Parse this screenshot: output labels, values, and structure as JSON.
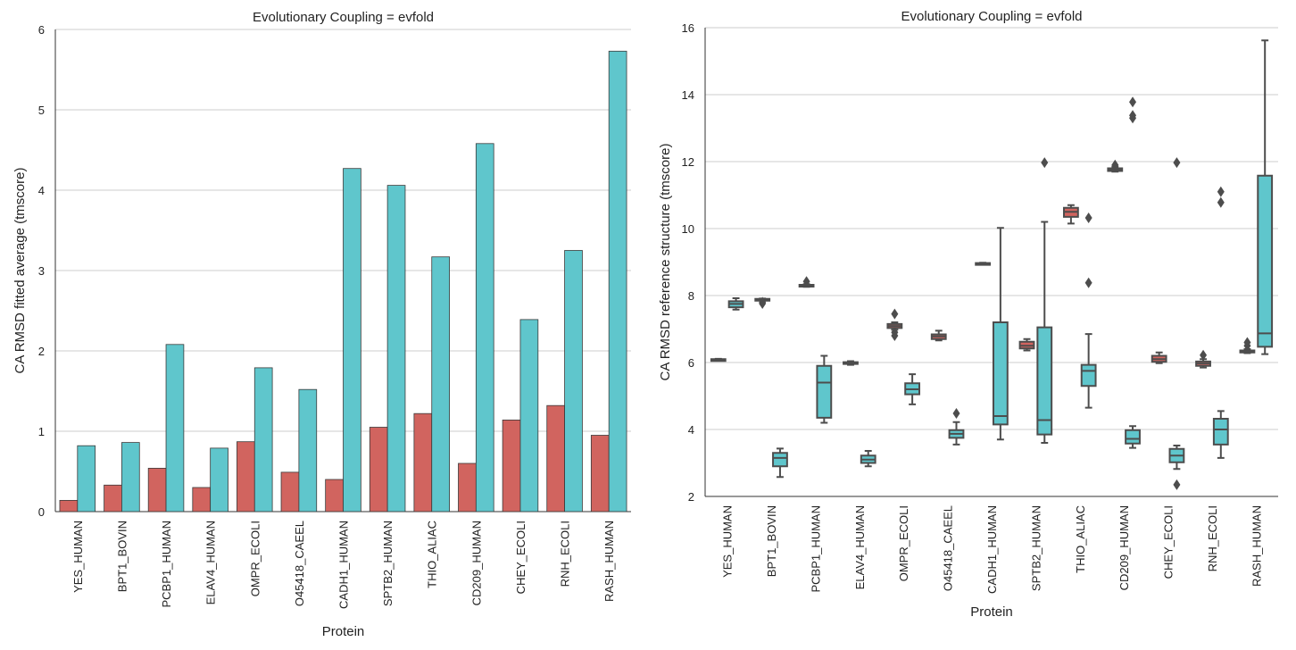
{
  "chart_data": [
    {
      "type": "bar",
      "title": "Evolutionary Coupling = evfold",
      "xlabel": "Protein",
      "ylabel": "CA RMSD fitted average (tmscore)",
      "ylim": [
        0,
        6
      ],
      "yticks": [
        "0",
        "1",
        "2",
        "3",
        "4",
        "5",
        "6"
      ],
      "grid": true,
      "categories": [
        "YES_HUMAN",
        "BPT1_BOVIN",
        "PCBP1_HUMAN",
        "ELAV4_HUMAN",
        "OMPR_ECOLI",
        "O45418_CAEEL",
        "CADH1_HUMAN",
        "SPTB2_HUMAN",
        "THIO_ALIAC",
        "CD209_HUMAN",
        "CHEY_ECOLI",
        "RNH_ECOLI",
        "RASH_HUMAN"
      ],
      "series": [
        {
          "color": "#d1645f",
          "values": [
            0.14,
            0.33,
            0.54,
            0.3,
            0.87,
            0.49,
            0.4,
            1.05,
            1.22,
            0.6,
            1.14,
            1.32,
            0.95
          ]
        },
        {
          "color": "#5fc6cc",
          "values": [
            0.82,
            0.86,
            2.08,
            0.79,
            1.79,
            1.52,
            4.27,
            4.06,
            3.17,
            4.58,
            2.39,
            3.25,
            5.73
          ]
        }
      ]
    },
    {
      "type": "box",
      "title": "Evolutionary Coupling = evfold",
      "xlabel": "Protein",
      "ylabel": "CA RMSD reference structure (tmscore)",
      "ylim": [
        2,
        16
      ],
      "yticks": [
        "2",
        "4",
        "6",
        "8",
        "10",
        "12",
        "14",
        "16"
      ],
      "grid": true,
      "categories": [
        "YES_HUMAN",
        "BPT1_BOVIN",
        "PCBP1_HUMAN",
        "ELAV4_HUMAN",
        "OMPR_ECOLI",
        "O45418_CAEEL",
        "CADH1_HUMAN",
        "SPTB2_HUMAN",
        "THIO_ALIAC",
        "CD209_HUMAN",
        "CHEY_ECOLI",
        "RNH_ECOLI",
        "RASH_HUMAN"
      ],
      "series": [
        {
          "color": "#d1645f",
          "boxes": [
            {
              "whislo": 6.07,
              "q1": 6.08,
              "med": 6.09,
              "q3": 6.1,
              "whishi": 6.11,
              "fliers": []
            },
            {
              "whislo": 7.86,
              "q1": 7.87,
              "med": 7.88,
              "q3": 7.9,
              "whishi": 7.91,
              "fliers": [
                7.76,
                7.8
              ]
            },
            {
              "whislo": 8.26,
              "q1": 8.28,
              "med": 8.3,
              "q3": 8.32,
              "whishi": 8.34,
              "fliers": [
                8.42
              ]
            },
            {
              "whislo": 5.93,
              "q1": 5.96,
              "med": 5.99,
              "q3": 6.01,
              "whishi": 6.04,
              "fliers": []
            },
            {
              "whislo": 6.98,
              "q1": 7.03,
              "med": 7.09,
              "q3": 7.15,
              "whishi": 7.2,
              "fliers": [
                6.8,
                6.9,
                7.45
              ]
            },
            {
              "whislo": 6.66,
              "q1": 6.7,
              "med": 6.78,
              "q3": 6.84,
              "whishi": 6.95,
              "fliers": []
            },
            {
              "whislo": 8.94,
              "q1": 8.95,
              "med": 8.96,
              "q3": 8.97,
              "whishi": 8.98,
              "fliers": []
            },
            {
              "whislo": 6.36,
              "q1": 6.42,
              "med": 6.5,
              "q3": 6.62,
              "whishi": 6.7,
              "fliers": []
            },
            {
              "whislo": 10.15,
              "q1": 10.35,
              "med": 10.5,
              "q3": 10.62,
              "whishi": 10.7,
              "fliers": []
            },
            {
              "whislo": 11.7,
              "q1": 11.72,
              "med": 11.76,
              "q3": 11.8,
              "whishi": 11.85,
              "fliers": [
                11.9
              ]
            },
            {
              "whislo": 5.98,
              "q1": 6.02,
              "med": 6.1,
              "q3": 6.2,
              "whishi": 6.3,
              "fliers": []
            },
            {
              "whislo": 5.85,
              "q1": 5.9,
              "med": 5.97,
              "q3": 6.03,
              "whishi": 6.1,
              "fliers": [
                6.22
              ]
            },
            {
              "whislo": 6.28,
              "q1": 6.3,
              "med": 6.33,
              "q3": 6.36,
              "whishi": 6.4,
              "fliers": [
                6.5,
                6.6
              ]
            }
          ]
        },
        {
          "color": "#5fc6cc",
          "boxes": [
            {
              "whislo": 7.58,
              "q1": 7.65,
              "med": 7.75,
              "q3": 7.83,
              "whishi": 7.92,
              "fliers": []
            },
            {
              "whislo": 2.58,
              "q1": 2.9,
              "med": 3.15,
              "q3": 3.3,
              "whishi": 3.43,
              "fliers": []
            },
            {
              "whislo": 4.2,
              "q1": 4.35,
              "med": 5.4,
              "q3": 5.9,
              "whishi": 6.2,
              "fliers": []
            },
            {
              "whislo": 2.9,
              "q1": 3.0,
              "med": 3.1,
              "q3": 3.22,
              "whishi": 3.36,
              "fliers": []
            },
            {
              "whislo": 4.75,
              "q1": 5.05,
              "med": 5.2,
              "q3": 5.38,
              "whishi": 5.65,
              "fliers": []
            },
            {
              "whislo": 3.55,
              "q1": 3.75,
              "med": 3.87,
              "q3": 3.98,
              "whishi": 4.22,
              "fliers": [
                4.48
              ]
            },
            {
              "whislo": 3.7,
              "q1": 4.15,
              "med": 4.4,
              "q3": 7.2,
              "whishi": 10.02,
              "fliers": []
            },
            {
              "whislo": 3.6,
              "q1": 3.85,
              "med": 4.28,
              "q3": 7.05,
              "whishi": 10.2,
              "fliers": [
                11.97
              ]
            },
            {
              "whislo": 4.65,
              "q1": 5.3,
              "med": 5.75,
              "q3": 5.93,
              "whishi": 6.85,
              "fliers": [
                8.38,
                10.32
              ]
            },
            {
              "whislo": 3.45,
              "q1": 3.58,
              "med": 3.72,
              "q3": 3.98,
              "whishi": 4.1,
              "fliers": [
                13.3,
                13.38,
                13.78
              ]
            },
            {
              "whislo": 2.82,
              "q1": 3.02,
              "med": 3.22,
              "q3": 3.42,
              "whishi": 3.52,
              "fliers": [
                2.35,
                11.97
              ]
            },
            {
              "whislo": 3.15,
              "q1": 3.55,
              "med": 4.0,
              "q3": 4.32,
              "whishi": 4.55,
              "fliers": [
                10.78,
                11.1
              ]
            },
            {
              "whislo": 6.25,
              "q1": 6.47,
              "med": 6.87,
              "q3": 11.58,
              "whishi": 15.62,
              "fliers": []
            }
          ]
        }
      ]
    }
  ]
}
